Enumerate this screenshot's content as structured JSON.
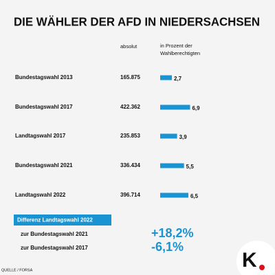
{
  "chart_data": {
    "type": "bar",
    "orientation": "horizontal",
    "title": "DIE WÄHLER DER AFD IN NIEDERSACHSEN",
    "column_headers": [
      "absolut",
      "in Prozent der",
      "Wahlberechtigten"
    ],
    "categories": [
      "Bundestagswahl 2013",
      "Bundestagswahl 2017",
      "Landtagswahl 2017",
      "Bundestagswahl 2021",
      "Landtagswahl 2022"
    ],
    "absolute": [
      "165.875",
      "422.362",
      "235.853",
      "336.434",
      "396.714"
    ],
    "values": [
      2.7,
      6.9,
      3.9,
      5.5,
      6.5
    ],
    "value_labels": [
      "2,7",
      "6,9",
      "3,9",
      "5,5",
      "6,5"
    ],
    "color": "#1a93d2",
    "difference": {
      "title": "Differenz Landtagswahl 2022",
      "rows": [
        {
          "label": "zur Bundestagswahl 2021",
          "value": "+18,2%"
        },
        {
          "label": "zur Bundestagswahl 2017",
          "value": "-6,1%"
        }
      ]
    },
    "source": "QUELLE / FORSA",
    "logo": "K"
  }
}
